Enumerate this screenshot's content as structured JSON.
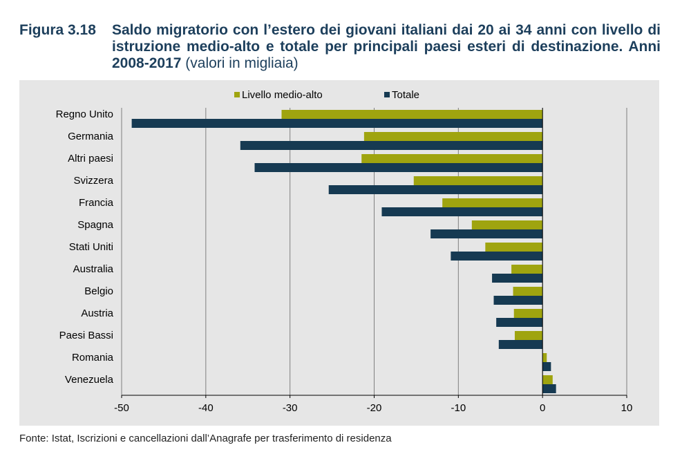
{
  "figure": {
    "label": "Figura 3.18",
    "title": "Saldo migratorio con l’estero dei giovani italiani dai 20 ai 34 anni con livello di istruzione medio-alto e totale per principali paesi esteri di destinazione. Anni 2008-2017",
    "subtitle": "(valori in migliaia)"
  },
  "source": "Fonte: Istat, Iscrizioni e cancellazioni dall’Anagrafe per trasferimento di residenza",
  "colors": {
    "medio_alto": "#9fa40f",
    "totale": "#163a52",
    "grid": "#7f7f7f",
    "background": "#e6e6e6"
  },
  "chart_data": {
    "type": "bar",
    "orientation": "horizontal",
    "categories": [
      "Regno Unito",
      "Germania",
      "Altri paesi",
      "Svizzera",
      "Francia",
      "Spagna",
      "Stati Uniti",
      "Australia",
      "Belgio",
      "Austria",
      "Paesi Bassi",
      "Romania",
      "Venezuela"
    ],
    "series": [
      {
        "name": "Livello medio-alto",
        "values": [
          -31.0,
          -21.2,
          -21.5,
          -15.3,
          -11.9,
          -8.4,
          -6.8,
          -3.7,
          -3.5,
          -3.4,
          -3.3,
          0.5,
          1.2
        ]
      },
      {
        "name": "Totale",
        "values": [
          -48.8,
          -35.9,
          -34.2,
          -25.4,
          -19.1,
          -13.3,
          -10.9,
          -6.0,
          -5.8,
          -5.5,
          -5.2,
          1.0,
          1.6
        ]
      }
    ],
    "xlim": [
      -50,
      10
    ],
    "xticks": [
      "-50",
      "-40",
      "-30",
      "-20",
      "-10",
      "0",
      "10"
    ],
    "xtick_values": [
      -50,
      -40,
      -30,
      -20,
      -10,
      0,
      10
    ],
    "grid": "vertical",
    "legend": "top-center"
  }
}
